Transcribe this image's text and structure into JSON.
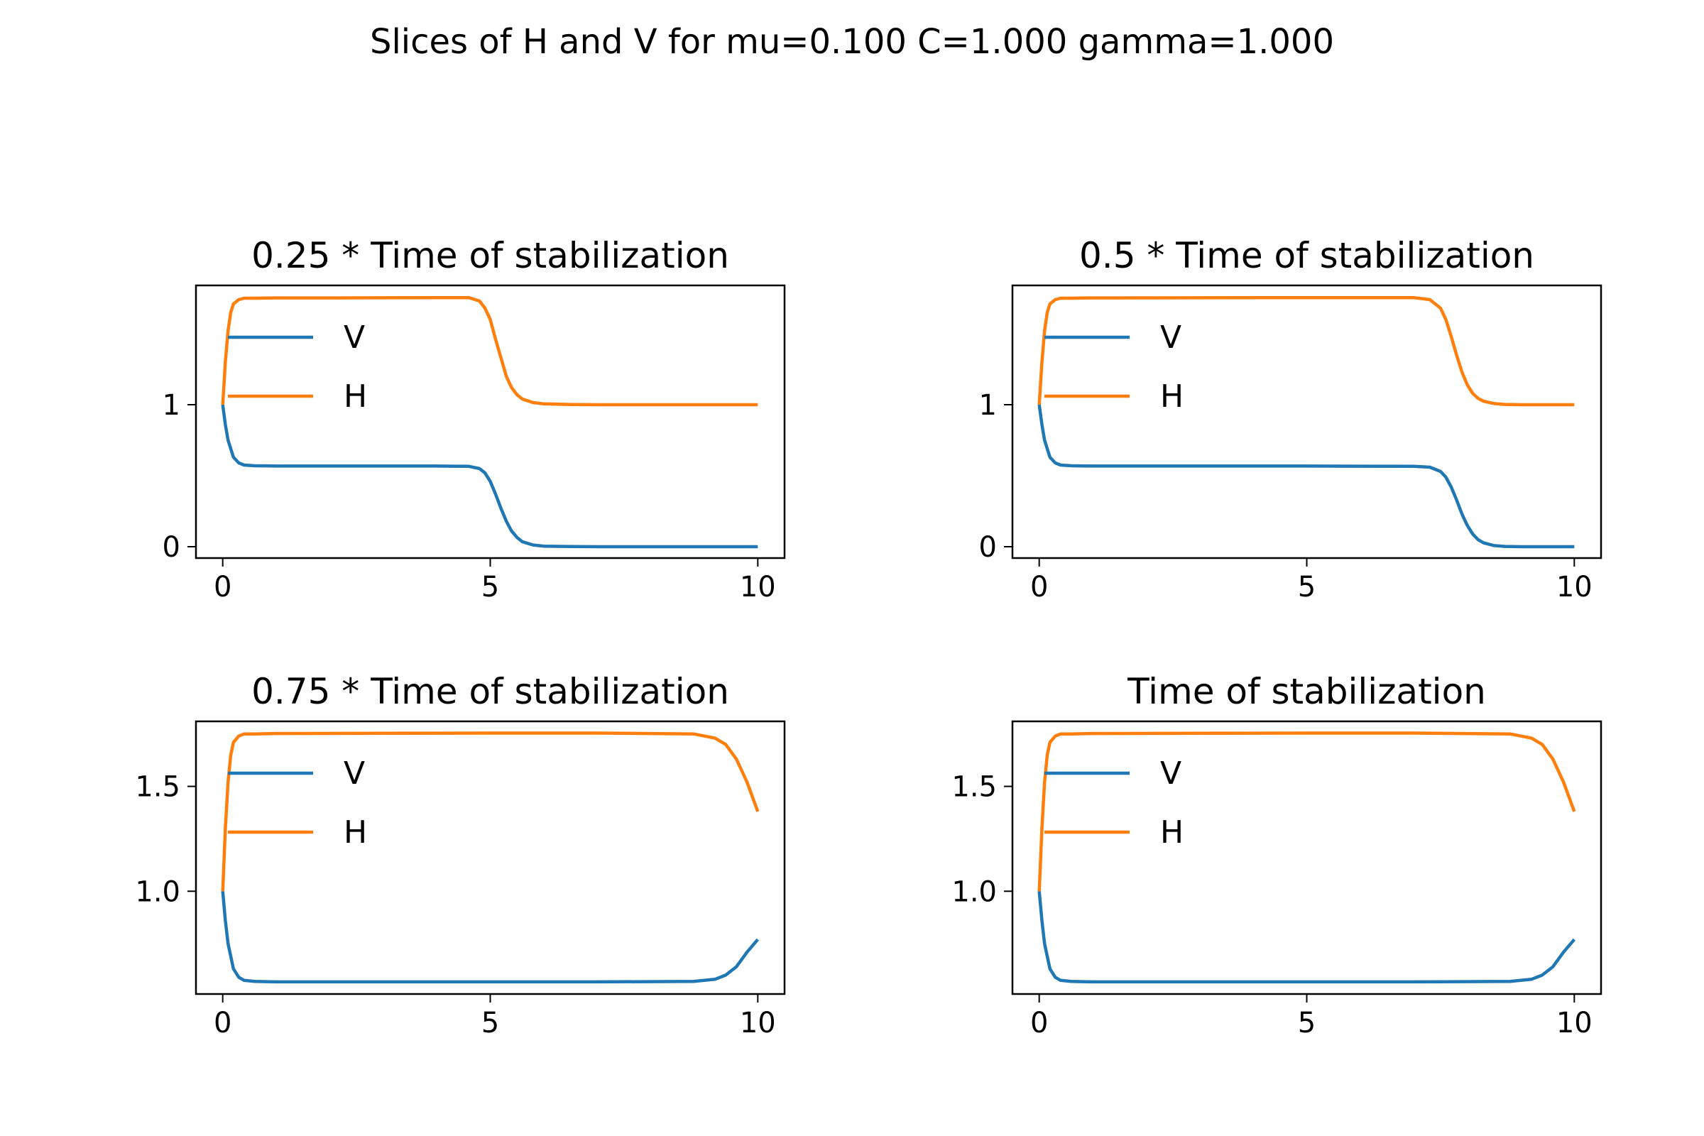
{
  "figure": {
    "suptitle": "Slices of H and V for mu=0.100 C=1.000 gamma=1.000"
  },
  "colors": {
    "V": "#1f77b4",
    "H": "#ff7f0e",
    "axes": "#000000",
    "background": "#ffffff"
  },
  "chart_data": [
    {
      "type": "line",
      "title": "0.25 *  Time of stabilization",
      "xlabel": "",
      "ylabel": "",
      "xlim": [
        -0.5,
        10.5
      ],
      "ylim": [
        -0.08,
        1.84
      ],
      "xticks": [
        0,
        5,
        10
      ],
      "yticks": [
        0,
        1
      ],
      "ytick_labels": [
        "0",
        "1"
      ],
      "grid": false,
      "legend": {
        "position": "upper-left",
        "entries": [
          "V",
          "H"
        ]
      },
      "series": [
        {
          "name": "V",
          "color": "#1f77b4",
          "x": [
            0,
            0.05,
            0.1,
            0.2,
            0.3,
            0.4,
            0.6,
            1,
            2,
            3,
            4,
            4.6,
            4.8,
            4.9,
            5.0,
            5.1,
            5.2,
            5.3,
            5.4,
            5.5,
            5.6,
            5.8,
            6.0,
            6.5,
            7,
            8,
            9,
            10
          ],
          "y": [
            1.0,
            0.86,
            0.75,
            0.63,
            0.59,
            0.575,
            0.57,
            0.568,
            0.568,
            0.568,
            0.568,
            0.566,
            0.55,
            0.52,
            0.46,
            0.37,
            0.27,
            0.18,
            0.11,
            0.065,
            0.035,
            0.012,
            0.004,
            0.001,
            0,
            0,
            0,
            0
          ]
        },
        {
          "name": "H",
          "color": "#ff7f0e",
          "x": [
            0,
            0.05,
            0.1,
            0.15,
            0.2,
            0.3,
            0.4,
            0.6,
            1,
            2,
            3,
            4,
            4.6,
            4.8,
            4.9,
            5.0,
            5.1,
            5.2,
            5.3,
            5.4,
            5.5,
            5.6,
            5.8,
            6.0,
            6.5,
            7,
            8,
            9,
            10
          ],
          "y": [
            1.0,
            1.3,
            1.52,
            1.65,
            1.71,
            1.74,
            1.75,
            1.75,
            1.752,
            1.752,
            1.753,
            1.754,
            1.754,
            1.73,
            1.68,
            1.6,
            1.46,
            1.33,
            1.2,
            1.12,
            1.07,
            1.04,
            1.015,
            1.006,
            1.001,
            1.0,
            1.0,
            1.0,
            1.0
          ]
        }
      ]
    },
    {
      "type": "line",
      "title": "0.5 *  Time of stabilization",
      "xlabel": "",
      "ylabel": "",
      "xlim": [
        -0.5,
        10.5
      ],
      "ylim": [
        -0.08,
        1.84
      ],
      "xticks": [
        0,
        5,
        10
      ],
      "yticks": [
        0,
        1
      ],
      "ytick_labels": [
        "0",
        "1"
      ],
      "grid": false,
      "legend": {
        "position": "upper-left",
        "entries": [
          "V",
          "H"
        ]
      },
      "series": [
        {
          "name": "V",
          "color": "#1f77b4",
          "x": [
            0,
            0.05,
            0.1,
            0.2,
            0.3,
            0.4,
            0.6,
            1,
            3,
            5,
            7,
            7.3,
            7.5,
            7.6,
            7.7,
            7.8,
            7.9,
            8.0,
            8.1,
            8.2,
            8.3,
            8.5,
            8.7,
            9,
            9.5,
            10
          ],
          "y": [
            1.0,
            0.86,
            0.75,
            0.63,
            0.59,
            0.575,
            0.57,
            0.568,
            0.568,
            0.568,
            0.566,
            0.56,
            0.53,
            0.49,
            0.42,
            0.33,
            0.23,
            0.15,
            0.09,
            0.05,
            0.028,
            0.008,
            0.002,
            0,
            0,
            0
          ]
        },
        {
          "name": "H",
          "color": "#ff7f0e",
          "x": [
            0,
            0.05,
            0.1,
            0.15,
            0.2,
            0.3,
            0.4,
            0.6,
            1,
            3,
            5,
            7,
            7.3,
            7.5,
            7.6,
            7.7,
            7.8,
            7.9,
            8.0,
            8.1,
            8.2,
            8.3,
            8.5,
            8.7,
            9,
            9.5,
            10
          ],
          "y": [
            1.0,
            1.3,
            1.52,
            1.65,
            1.71,
            1.74,
            1.75,
            1.75,
            1.752,
            1.753,
            1.754,
            1.754,
            1.74,
            1.68,
            1.6,
            1.48,
            1.35,
            1.23,
            1.14,
            1.08,
            1.045,
            1.025,
            1.008,
            1.002,
            1.0,
            1.0,
            1.0
          ]
        }
      ]
    },
    {
      "type": "line",
      "title": "0.75 *  Time of stabilization",
      "xlabel": "",
      "ylabel": "",
      "xlim": [
        -0.5,
        10.5
      ],
      "ylim": [
        0.51,
        1.81
      ],
      "xticks": [
        0,
        5,
        10
      ],
      "yticks": [
        1.0,
        1.5
      ],
      "ytick_labels": [
        "1.0",
        "1.5"
      ],
      "grid": false,
      "legend": {
        "position": "upper-left",
        "entries": [
          "V",
          "H"
        ]
      },
      "series": [
        {
          "name": "V",
          "color": "#1f77b4",
          "x": [
            0,
            0.05,
            0.1,
            0.2,
            0.3,
            0.4,
            0.6,
            1,
            3,
            5,
            7,
            8.8,
            9.2,
            9.4,
            9.6,
            9.8,
            10
          ],
          "y": [
            1.0,
            0.86,
            0.75,
            0.63,
            0.59,
            0.575,
            0.57,
            0.568,
            0.568,
            0.568,
            0.568,
            0.57,
            0.58,
            0.6,
            0.64,
            0.71,
            0.77
          ]
        },
        {
          "name": "H",
          "color": "#ff7f0e",
          "x": [
            0,
            0.05,
            0.1,
            0.15,
            0.2,
            0.3,
            0.4,
            0.6,
            1,
            3,
            5,
            7,
            8.8,
            9.2,
            9.4,
            9.6,
            9.8,
            10
          ],
          "y": [
            1.0,
            1.3,
            1.52,
            1.65,
            1.71,
            1.74,
            1.75,
            1.75,
            1.752,
            1.753,
            1.754,
            1.754,
            1.75,
            1.73,
            1.7,
            1.63,
            1.52,
            1.38
          ]
        }
      ]
    },
    {
      "type": "line",
      "title": "Time of stabilization",
      "xlabel": "",
      "ylabel": "",
      "xlim": [
        -0.5,
        10.5
      ],
      "ylim": [
        0.51,
        1.81
      ],
      "xticks": [
        0,
        5,
        10
      ],
      "yticks": [
        1.0,
        1.5
      ],
      "ytick_labels": [
        "1.0",
        "1.5"
      ],
      "grid": false,
      "legend": {
        "position": "upper-left",
        "entries": [
          "V",
          "H"
        ]
      },
      "series": [
        {
          "name": "V",
          "color": "#1f77b4",
          "x": [
            0,
            0.05,
            0.1,
            0.2,
            0.3,
            0.4,
            0.6,
            1,
            3,
            5,
            7,
            8.8,
            9.2,
            9.4,
            9.6,
            9.8,
            10
          ],
          "y": [
            1.0,
            0.86,
            0.75,
            0.63,
            0.59,
            0.575,
            0.57,
            0.568,
            0.568,
            0.568,
            0.568,
            0.57,
            0.58,
            0.6,
            0.64,
            0.71,
            0.77
          ]
        },
        {
          "name": "H",
          "color": "#ff7f0e",
          "x": [
            0,
            0.05,
            0.1,
            0.15,
            0.2,
            0.3,
            0.4,
            0.6,
            1,
            3,
            5,
            7,
            8.8,
            9.2,
            9.4,
            9.6,
            9.8,
            10
          ],
          "y": [
            1.0,
            1.3,
            1.52,
            1.65,
            1.71,
            1.74,
            1.75,
            1.75,
            1.752,
            1.753,
            1.754,
            1.754,
            1.75,
            1.73,
            1.7,
            1.63,
            1.52,
            1.38
          ]
        }
      ]
    }
  ]
}
